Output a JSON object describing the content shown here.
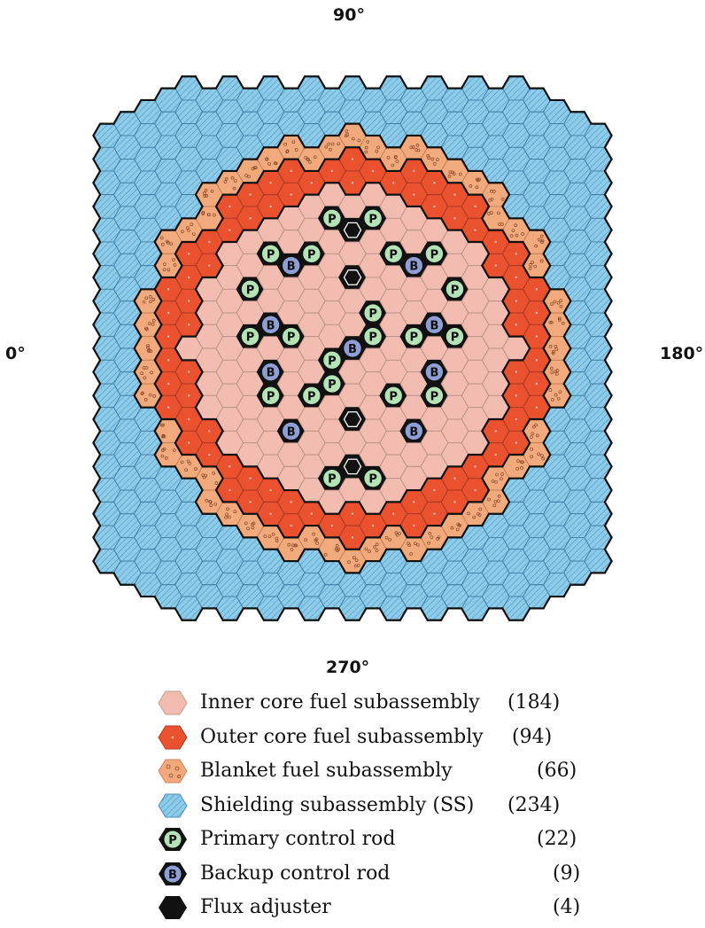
{
  "axis_labels": {
    "top": "90°",
    "left": "0°",
    "right": "180°",
    "bottom": "270°"
  },
  "colors": {
    "inner_core": "#f2bdb0",
    "outer_core": "#e9512f",
    "blanket": "#f2aa7c",
    "shielding": "#8ccbea",
    "primary_rod": "#b5e3b8",
    "backup_rod": "#8f9fd6",
    "flux_adjuster": "#111111",
    "outline": "#222222"
  },
  "rod_markers": {
    "primary": "P",
    "backup": "B"
  },
  "legend": [
    {
      "key": "inner_core",
      "label": "Inner core fuel subassembly",
      "count": "(184)"
    },
    {
      "key": "outer_core",
      "label": "Outer core fuel subassembly",
      "count": "(94)"
    },
    {
      "key": "blanket",
      "label": "Blanket fuel subassembly",
      "count": "(66)"
    },
    {
      "key": "shielding",
      "label": "Shielding subassembly (SS)",
      "count": "(234)"
    },
    {
      "key": "primary_rod",
      "label": "Primary control rod",
      "count": "(22)"
    },
    {
      "key": "backup_rod",
      "label": "Backup control rod",
      "count": "(9)"
    },
    {
      "key": "flux_adjuster",
      "label": "Flux adjuster",
      "count": "(4)"
    }
  ]
}
